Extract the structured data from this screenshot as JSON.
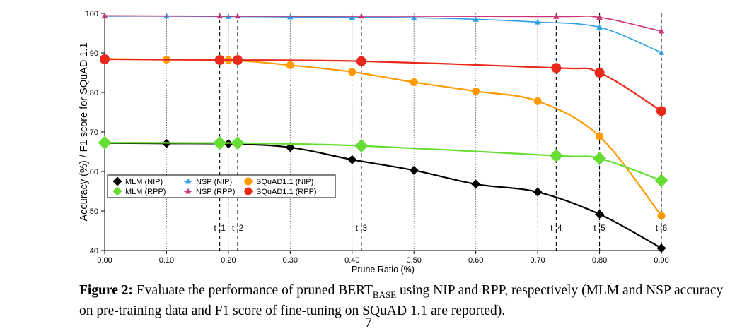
{
  "chart_data": {
    "type": "line",
    "title": "",
    "xlabel": "Prune Ratio (%)",
    "ylabel": "Accuracy (%) / F1 score for SQuAD 1.1",
    "xlim": [
      0.0,
      0.9
    ],
    "ylim": [
      40,
      100
    ],
    "xticks": [
      "0.00",
      "0.10",
      "0.20",
      "0.30",
      "0.40",
      "0.50",
      "0.60",
      "0.70",
      "0.80",
      "0.90"
    ],
    "yticks": [
      "40",
      "50",
      "60",
      "70",
      "80",
      "90",
      "100"
    ],
    "grid": "vertical dotted",
    "legend": "left, middle",
    "series": [
      {
        "name": "MLM (NIP)",
        "color": "#000000",
        "marker": "diamond",
        "x": [
          0.0,
          0.1,
          0.2,
          0.3,
          0.4,
          0.5,
          0.6,
          0.7,
          0.8,
          0.9
        ],
        "y": [
          67.2,
          67.1,
          67.0,
          66.1,
          63.0,
          60.3,
          56.8,
          54.8,
          49.2,
          40.6
        ]
      },
      {
        "name": "MLM (RPP)",
        "color": "#66dd33",
        "marker": "diamond",
        "x": [
          0.0,
          0.186,
          0.215,
          0.415,
          0.73,
          0.8,
          0.9
        ],
        "y": [
          67.3,
          67.2,
          67.2,
          66.5,
          64.0,
          63.3,
          57.7
        ]
      },
      {
        "name": "NSP (NIP)",
        "color": "#2a9fe6",
        "marker": "triangle",
        "x": [
          0.0,
          0.1,
          0.2,
          0.3,
          0.4,
          0.5,
          0.6,
          0.7,
          0.8,
          0.9
        ],
        "y": [
          99.3,
          99.3,
          99.2,
          99.1,
          99.0,
          98.9,
          98.5,
          97.8,
          96.5,
          90.1
        ]
      },
      {
        "name": "NSP (RPP)",
        "color": "#cc3377",
        "marker": "triangle",
        "x": [
          0.0,
          0.186,
          0.215,
          0.415,
          0.73,
          0.8,
          0.9
        ],
        "y": [
          99.4,
          99.3,
          99.3,
          99.3,
          99.2,
          99.0,
          95.5
        ]
      },
      {
        "name": "SQuAD1.1 (NIP)",
        "color": "#ff9900",
        "marker": "circle",
        "x": [
          0.0,
          0.1,
          0.2,
          0.3,
          0.4,
          0.5,
          0.6,
          0.7,
          0.8,
          0.9
        ],
        "y": [
          88.5,
          88.3,
          88.2,
          86.9,
          85.2,
          82.6,
          80.3,
          77.8,
          68.9,
          48.8
        ]
      },
      {
        "name": "SQuAD1.1 (RPP)",
        "color": "#e8291c",
        "marker": "circle",
        "x": [
          0.0,
          0.186,
          0.215,
          0.415,
          0.73,
          0.8,
          0.9
        ],
        "y": [
          88.4,
          88.2,
          88.2,
          87.9,
          86.2,
          85.0,
          75.3
        ]
      }
    ],
    "annotations": [
      {
        "text": "t=1",
        "x": 0.186
      },
      {
        "text": "t=2",
        "x": 0.215
      },
      {
        "text": "t=3",
        "x": 0.415
      },
      {
        "text": "t=4",
        "x": 0.73
      },
      {
        "text": "t=5",
        "x": 0.8
      },
      {
        "text": "t=6",
        "x": 0.9
      }
    ]
  },
  "caption": {
    "label": "Figure 2:",
    "text_before": " Evaluate the performance of pruned ",
    "model": "BERT",
    "model_sub": "BASE",
    "text_after": " using NIP and RPP, respectively (MLM and NSP accuracy on pre-training data and F1 score of fine-tuning on SQuAD 1.1 are reported)."
  },
  "page_number": "7"
}
